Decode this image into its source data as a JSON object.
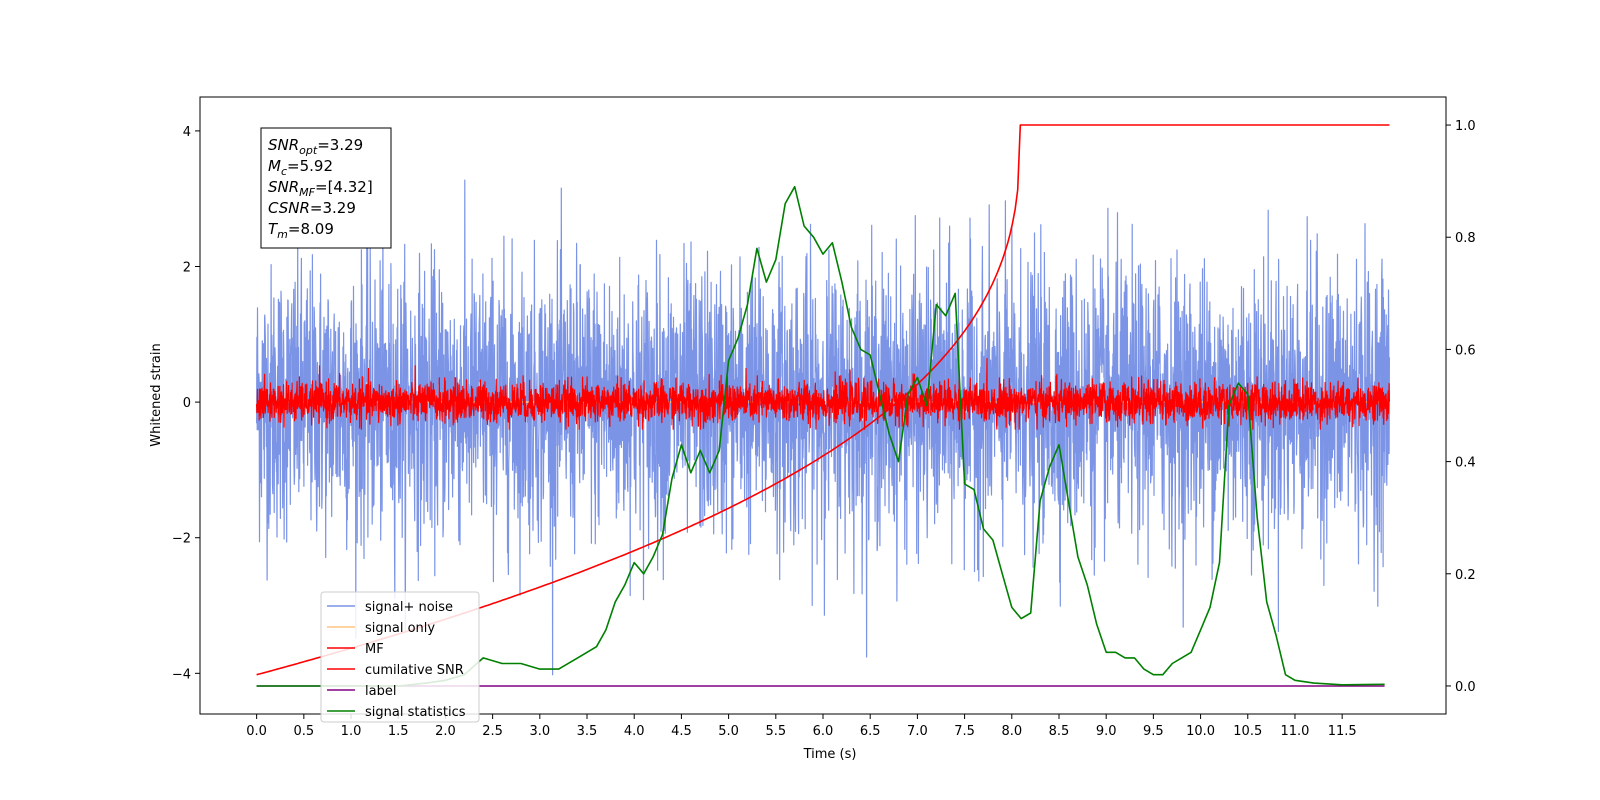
{
  "chart_data": {
    "type": "line",
    "xlabel": "Time (s)",
    "ylabel": "Whitened strain",
    "xlim": [
      -0.6,
      12.6
    ],
    "ylim": [
      -4.6,
      4.5
    ],
    "y2lim": [
      -0.05,
      1.05
    ],
    "x_ticks": [
      "0.0",
      "0.5",
      "1.0",
      "1.5",
      "2.0",
      "2.5",
      "3.0",
      "3.5",
      "4.0",
      "4.5",
      "5.0",
      "5.5",
      "6.0",
      "6.5",
      "7.0",
      "7.5",
      "8.0",
      "8.5",
      "9.0",
      "9.5",
      "10.0",
      "10.5",
      "11.0",
      "11.5"
    ],
    "y_ticks": [
      "−4",
      "−2",
      "0",
      "2",
      "4"
    ],
    "y2_ticks": [
      "0.0",
      "0.2",
      "0.4",
      "0.6",
      "0.8",
      "1.0"
    ],
    "grid": false,
    "legend_placement": "lower-left",
    "annotation": {
      "lines": [
        {
          "base": "SNR",
          "sub": "opt",
          "value": "=3.29"
        },
        {
          "base": "M",
          "sub": "c",
          "value": "=5.92"
        },
        {
          "base": "SNR",
          "sub": "MF",
          "value": "=[4.32]"
        },
        {
          "base": "CSNR",
          "sub": "",
          "value": "=3.29"
        },
        {
          "base": "T",
          "sub": "m",
          "value": "=8.09"
        }
      ]
    },
    "series": [
      {
        "name": "signal+ noise",
        "color": "#7b94e6",
        "axis": "left",
        "kind": "noise",
        "x_range": [
          0,
          12
        ],
        "std": 1.0,
        "clip": [
          -4.2,
          4.1
        ]
      },
      {
        "name": "signal only",
        "color": "#ffc680",
        "axis": "left",
        "kind": "flat",
        "x_range": [
          0,
          12
        ],
        "value": 0
      },
      {
        "name": "MF",
        "color": "#ff0000",
        "axis": "left",
        "kind": "noise",
        "x_range": [
          0,
          12
        ],
        "std": 0.15,
        "clip": [
          -0.4,
          0.85
        ]
      },
      {
        "name": "cumilative SNR",
        "color": "#ff0000",
        "axis": "right",
        "kind": "curve",
        "T_m": 8.09,
        "end": 12,
        "start_value": 0.02,
        "max_value": 1.0
      },
      {
        "name": "label",
        "color": "#800080",
        "axis": "right",
        "kind": "flat",
        "x_range": [
          0,
          11.95
        ],
        "value": 0.0
      },
      {
        "name": "signal statistics",
        "color": "#008000",
        "axis": "right",
        "kind": "line",
        "x": [
          0,
          0.5,
          1.0,
          1.5,
          1.8,
          2.0,
          2.2,
          2.4,
          2.6,
          2.8,
          3.0,
          3.2,
          3.4,
          3.6,
          3.7,
          3.8,
          3.9,
          4.0,
          4.1,
          4.2,
          4.3,
          4.4,
          4.5,
          4.6,
          4.7,
          4.8,
          4.9,
          5.0,
          5.1,
          5.2,
          5.3,
          5.4,
          5.5,
          5.6,
          5.7,
          5.8,
          5.9,
          6.0,
          6.1,
          6.2,
          6.3,
          6.4,
          6.5,
          6.6,
          6.7,
          6.8,
          6.9,
          7.0,
          7.1,
          7.2,
          7.3,
          7.4,
          7.5,
          7.6,
          7.7,
          7.8,
          7.9,
          8.0,
          8.1,
          8.2,
          8.3,
          8.4,
          8.5,
          8.6,
          8.7,
          8.8,
          8.9,
          9.0,
          9.1,
          9.2,
          9.3,
          9.4,
          9.5,
          9.6,
          9.7,
          9.8,
          9.9,
          10.0,
          10.1,
          10.2,
          10.3,
          10.4,
          10.5,
          10.6,
          10.7,
          10.8,
          10.9,
          11.0,
          11.2,
          11.5,
          11.95
        ],
        "y": [
          0.0,
          0.0,
          0.0,
          0.0,
          0.005,
          0.01,
          0.02,
          0.05,
          0.04,
          0.04,
          0.03,
          0.03,
          0.05,
          0.07,
          0.1,
          0.15,
          0.18,
          0.22,
          0.2,
          0.23,
          0.27,
          0.37,
          0.43,
          0.38,
          0.42,
          0.38,
          0.42,
          0.58,
          0.62,
          0.68,
          0.78,
          0.72,
          0.76,
          0.86,
          0.89,
          0.82,
          0.8,
          0.77,
          0.79,
          0.72,
          0.64,
          0.6,
          0.59,
          0.52,
          0.45,
          0.4,
          0.52,
          0.55,
          0.5,
          0.68,
          0.66,
          0.7,
          0.36,
          0.35,
          0.28,
          0.26,
          0.2,
          0.14,
          0.12,
          0.13,
          0.33,
          0.39,
          0.43,
          0.33,
          0.23,
          0.18,
          0.11,
          0.06,
          0.06,
          0.05,
          0.05,
          0.03,
          0.02,
          0.02,
          0.04,
          0.05,
          0.06,
          0.1,
          0.14,
          0.22,
          0.5,
          0.54,
          0.52,
          0.3,
          0.15,
          0.09,
          0.02,
          0.01,
          0.005,
          0.002,
          0.003
        ]
      }
    ]
  }
}
